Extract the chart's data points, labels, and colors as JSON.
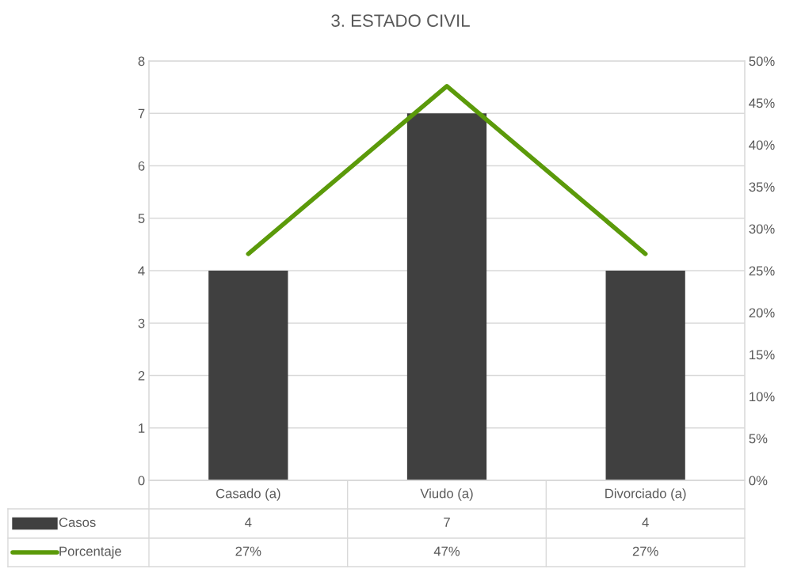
{
  "chart_data": {
    "type": "bar",
    "title": "3. ESTADO CIVIL",
    "categories": [
      "Casado (a)",
      "Viudo (a)",
      "Divorciado (a)"
    ],
    "series": [
      {
        "name": "Casos",
        "color": "#404040",
        "values": [
          4,
          7,
          4
        ],
        "value_labels": [
          "4",
          "7",
          "4"
        ]
      },
      {
        "name": "Porcentaje",
        "type": "line",
        "axis": "y2",
        "color": "#5b9a0a",
        "values": [
          27,
          47,
          27
        ],
        "value_labels": [
          "27%",
          "47%",
          "27%"
        ]
      }
    ],
    "ylim": [
      0,
      8
    ],
    "yticks": [
      0,
      1,
      2,
      3,
      4,
      5,
      6,
      7,
      8
    ],
    "y2lim": [
      0,
      50
    ],
    "y2ticks": [
      {
        "value": 0,
        "label": "0%"
      },
      {
        "value": 5,
        "label": "5%"
      },
      {
        "value": 10,
        "label": "10%"
      },
      {
        "value": 15,
        "label": "15%"
      },
      {
        "value": 20,
        "label": "20%"
      },
      {
        "value": 25,
        "label": "25%"
      },
      {
        "value": 30,
        "label": "30%"
      },
      {
        "value": 35,
        "label": "35%"
      },
      {
        "value": 40,
        "label": "40%"
      },
      {
        "value": 45,
        "label": "45%"
      },
      {
        "value": 50,
        "label": "50%"
      }
    ],
    "grid": "y",
    "legend": "bottom",
    "marker": "none",
    "line_style": "solid"
  }
}
